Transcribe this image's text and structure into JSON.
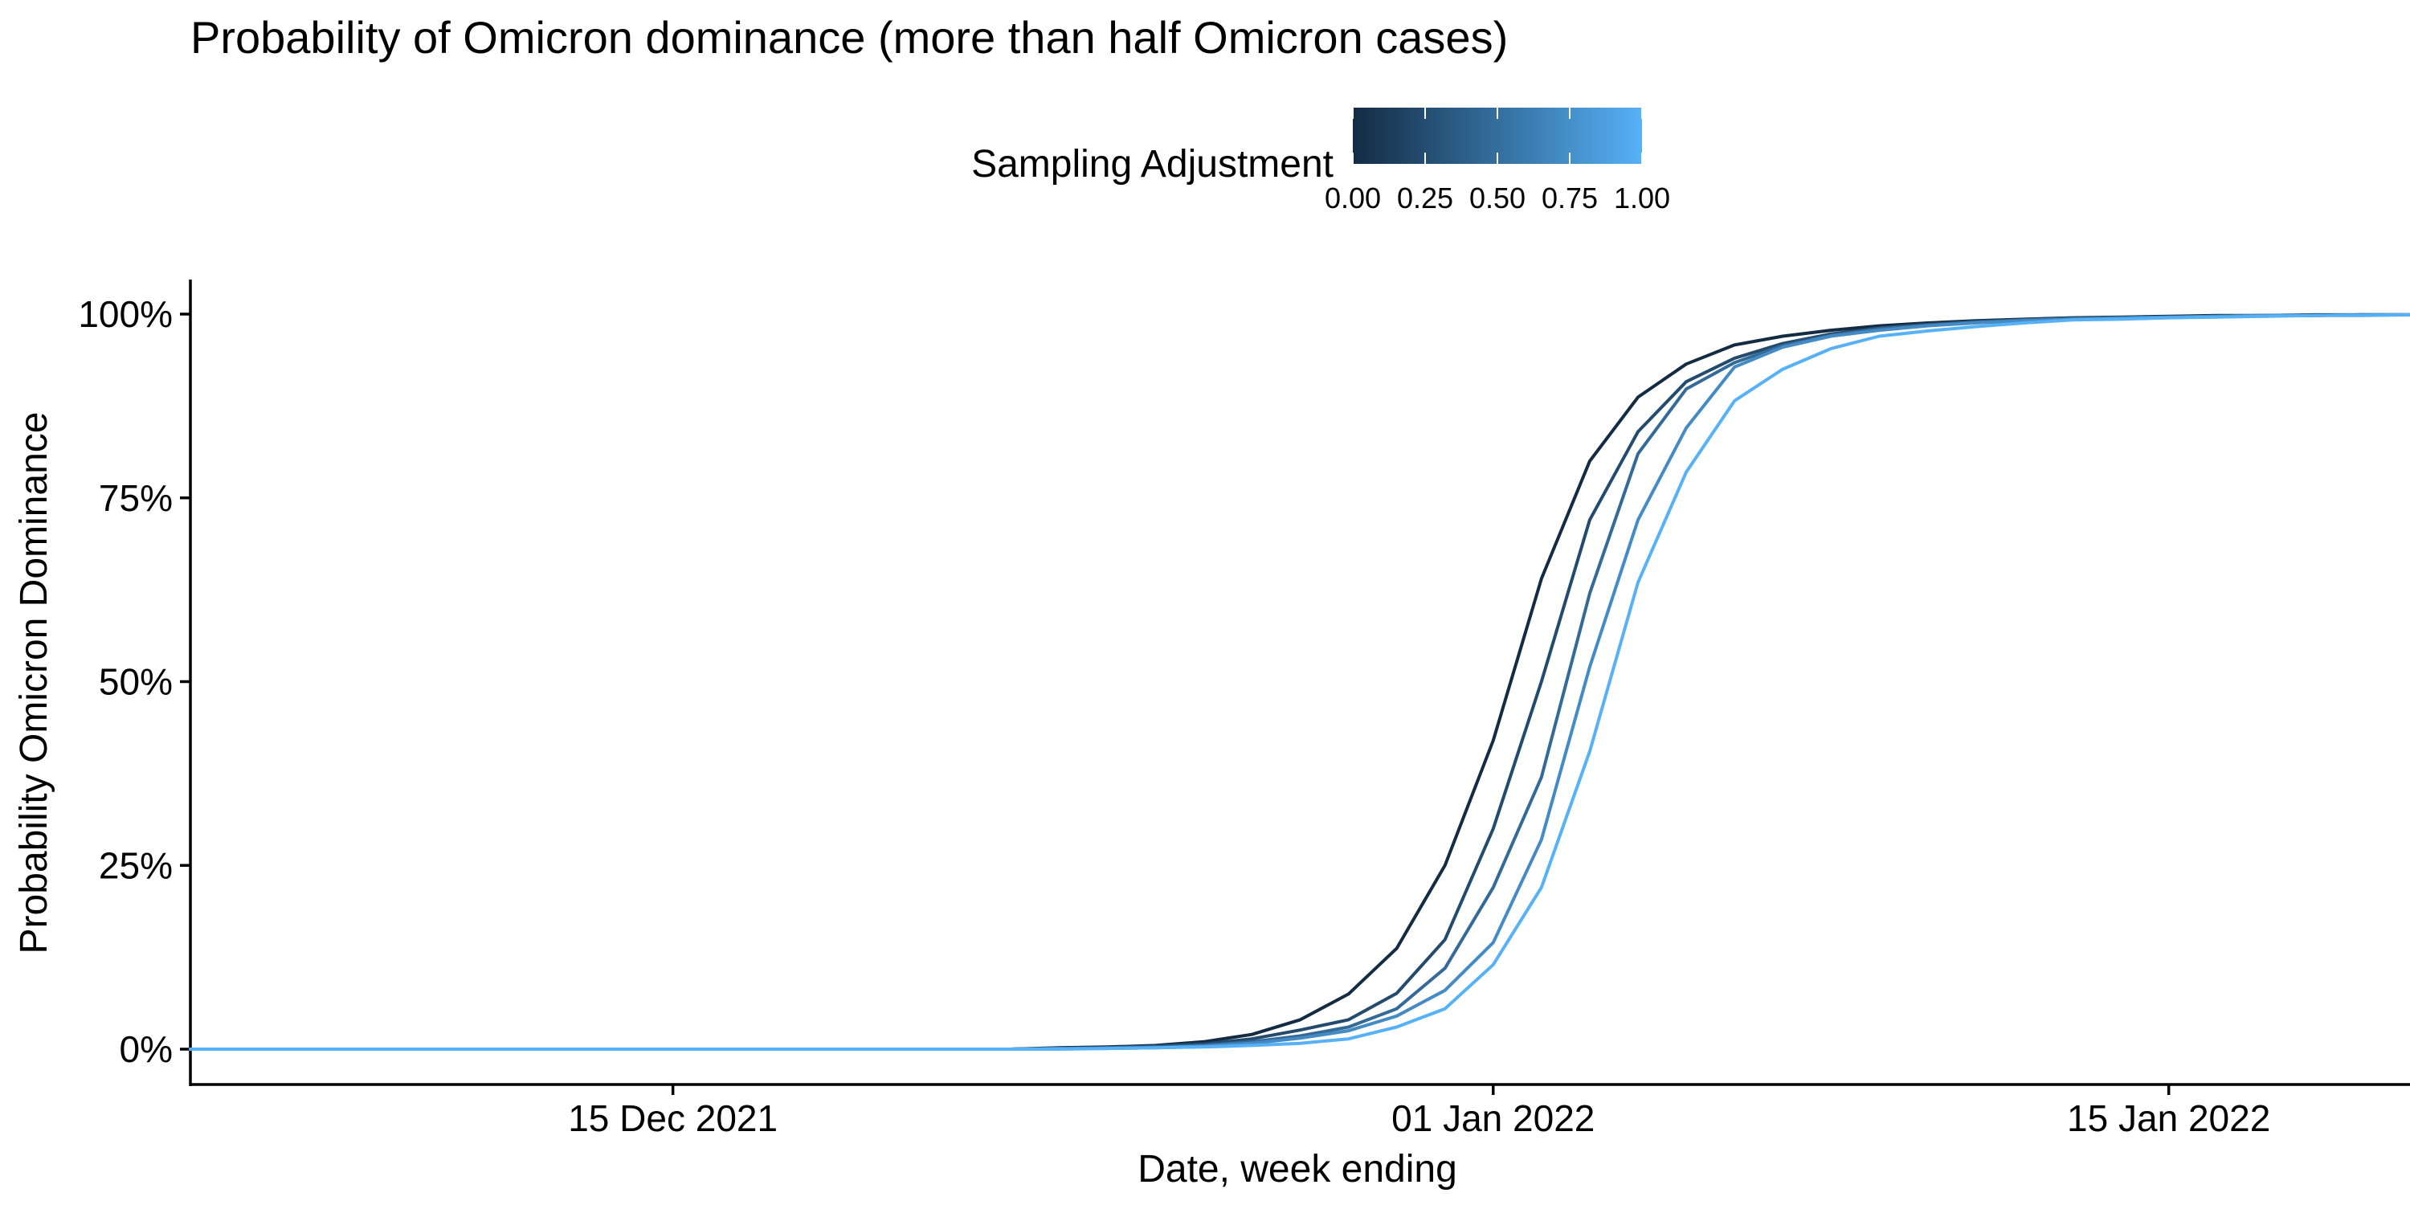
{
  "chart_data": {
    "type": "line",
    "title": "Probability of Omicron dominance (more than half Omicron cases)",
    "xlabel": "Date, week ending",
    "ylabel": "Probability Omicron Dominance",
    "x_range": [
      "2021-12-05",
      "2022-01-20"
    ],
    "ylim": [
      0,
      1
    ],
    "x_ticks": [
      {
        "date": "2021-12-15",
        "label": "15 Dec 2021"
      },
      {
        "date": "2022-01-01",
        "label": "01 Jan 2022"
      },
      {
        "date": "2022-01-15",
        "label": "15 Jan 2022"
      }
    ],
    "y_ticks": [
      {
        "value": 0,
        "label": "0%"
      },
      {
        "value": 0.25,
        "label": "25%"
      },
      {
        "value": 0.5,
        "label": "50%"
      },
      {
        "value": 0.75,
        "label": "75%"
      },
      {
        "value": 1,
        "label": "100%"
      }
    ],
    "grid": false,
    "legend": {
      "title": "Sampling Adjustment",
      "type": "colorbar",
      "position": "top",
      "low_color": "#132B43",
      "high_color": "#56B1F7",
      "range": [
        0,
        1
      ],
      "ticks": [
        {
          "value": 0,
          "label": "0.00"
        },
        {
          "value": 0.25,
          "label": "0.25"
        },
        {
          "value": 0.5,
          "label": "0.50"
        },
        {
          "value": 0.75,
          "label": "0.75"
        },
        {
          "value": 1,
          "label": "1.00"
        }
      ]
    },
    "x": [
      "2021-12-05",
      "2021-12-06",
      "2021-12-07",
      "2021-12-08",
      "2021-12-09",
      "2021-12-10",
      "2021-12-11",
      "2021-12-12",
      "2021-12-13",
      "2021-12-14",
      "2021-12-15",
      "2021-12-16",
      "2021-12-17",
      "2021-12-18",
      "2021-12-19",
      "2021-12-20",
      "2021-12-21",
      "2021-12-22",
      "2021-12-23",
      "2021-12-24",
      "2021-12-25",
      "2021-12-26",
      "2021-12-27",
      "2021-12-28",
      "2021-12-29",
      "2021-12-30",
      "2021-12-31",
      "2022-01-01",
      "2022-01-02",
      "2022-01-03",
      "2022-01-04",
      "2022-01-05",
      "2022-01-06",
      "2022-01-07",
      "2022-01-08",
      "2022-01-09",
      "2022-01-10",
      "2022-01-11",
      "2022-01-12",
      "2022-01-13",
      "2022-01-14",
      "2022-01-15",
      "2022-01-16",
      "2022-01-17",
      "2022-01-18",
      "2022-01-19",
      "2022-01-20"
    ],
    "series": [
      {
        "adjustment": 0.0,
        "color": "#132B43",
        "values": [
          0,
          0,
          0,
          0,
          0,
          0,
          0,
          0,
          0,
          0,
          0,
          0,
          0,
          0,
          0,
          0,
          0,
          0,
          0.002,
          0.003,
          0.005,
          0.01,
          0.02,
          0.04,
          0.075,
          0.137,
          0.25,
          0.42,
          0.64,
          0.8,
          0.887,
          0.932,
          0.958,
          0.97,
          0.978,
          0.984,
          0.988,
          0.991,
          0.993,
          0.995,
          0.996,
          0.997,
          0.998,
          0.998,
          0.999,
          0.999,
          0.999
        ]
      },
      {
        "adjustment": 0.25,
        "color": "#234B6E",
        "values": [
          0,
          0,
          0,
          0,
          0,
          0,
          0,
          0,
          0,
          0,
          0,
          0,
          0,
          0,
          0,
          0,
          0,
          0,
          0.001,
          0.002,
          0.004,
          0.007,
          0.014,
          0.026,
          0.04,
          0.076,
          0.149,
          0.3,
          0.5,
          0.72,
          0.84,
          0.908,
          0.94,
          0.96,
          0.973,
          0.981,
          0.986,
          0.99,
          0.992,
          0.994,
          0.995,
          0.996,
          0.997,
          0.998,
          0.998,
          0.999,
          0.999
        ]
      },
      {
        "adjustment": 0.5,
        "color": "#336A98",
        "values": [
          0,
          0,
          0,
          0,
          0,
          0,
          0,
          0,
          0,
          0,
          0,
          0,
          0,
          0,
          0,
          0,
          0,
          0,
          0.001,
          0.002,
          0.003,
          0.005,
          0.01,
          0.018,
          0.03,
          0.055,
          0.11,
          0.22,
          0.37,
          0.62,
          0.81,
          0.898,
          0.934,
          0.957,
          0.971,
          0.98,
          0.985,
          0.989,
          0.992,
          0.994,
          0.995,
          0.996,
          0.997,
          0.998,
          0.998,
          0.999,
          0.999
        ]
      },
      {
        "adjustment": 0.75,
        "color": "#448BC6",
        "values": [
          0,
          0,
          0,
          0,
          0,
          0,
          0,
          0,
          0,
          0,
          0,
          0,
          0,
          0,
          0,
          0,
          0,
          0,
          0.001,
          0.001,
          0.002,
          0.004,
          0.008,
          0.015,
          0.025,
          0.045,
          0.08,
          0.145,
          0.285,
          0.52,
          0.72,
          0.845,
          0.928,
          0.955,
          0.97,
          0.978,
          0.984,
          0.988,
          0.991,
          0.993,
          0.995,
          0.996,
          0.997,
          0.998,
          0.998,
          0.999,
          0.999
        ]
      },
      {
        "adjustment": 1.0,
        "color": "#56B1F7",
        "values": [
          0,
          0,
          0,
          0,
          0,
          0,
          0,
          0,
          0,
          0,
          0,
          0,
          0,
          0,
          0,
          0,
          0,
          0,
          0,
          0.001,
          0.002,
          0.003,
          0.005,
          0.008,
          0.014,
          0.03,
          0.055,
          0.115,
          0.22,
          0.405,
          0.635,
          0.785,
          0.882,
          0.925,
          0.953,
          0.97,
          0.977,
          0.983,
          0.988,
          0.992,
          0.993,
          0.995,
          0.996,
          0.997,
          0.998,
          0.998,
          0.999
        ]
      }
    ]
  }
}
